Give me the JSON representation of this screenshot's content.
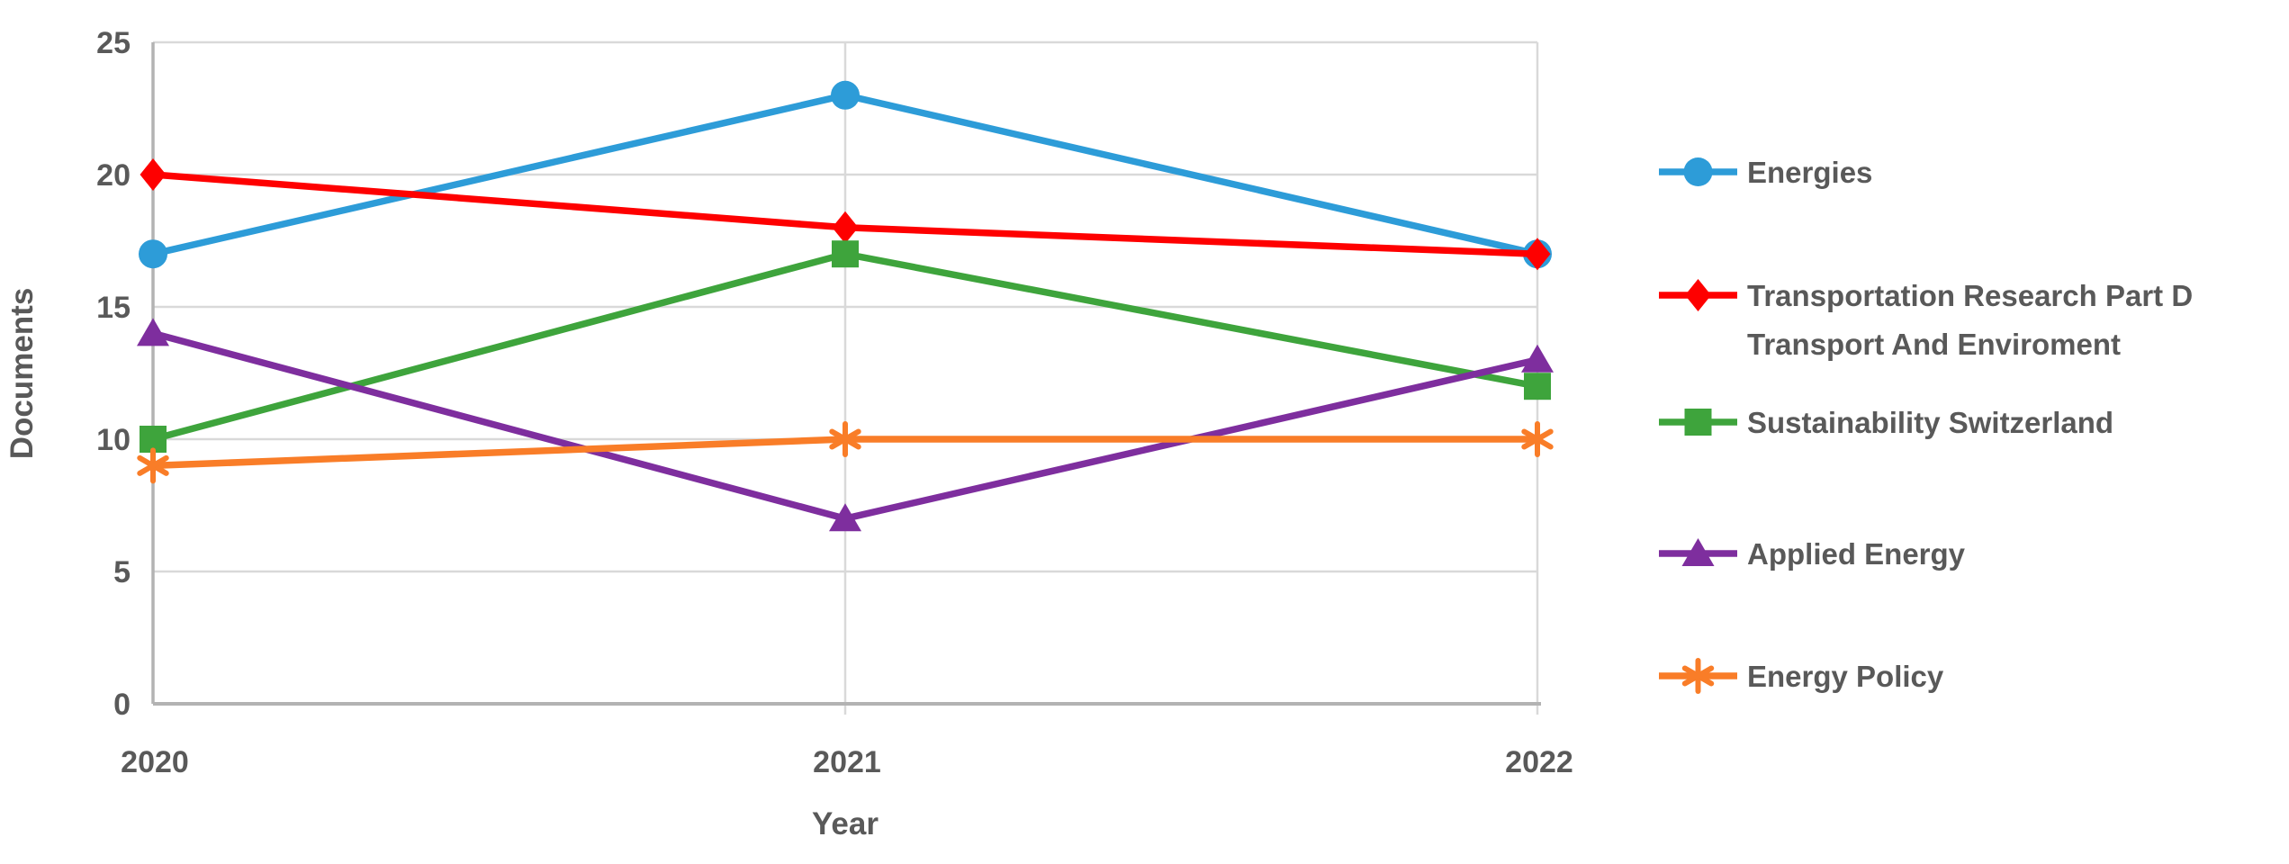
{
  "chart_data": {
    "type": "line",
    "title": "",
    "xlabel": "Year",
    "ylabel": "Documents",
    "categories": [
      "2020",
      "2021",
      "2022"
    ],
    "series": [
      {
        "name": "Energies",
        "values": [
          17,
          23,
          17
        ],
        "color": "#2D9CD8",
        "marker": "circle",
        "legend_lines": [
          "Energies"
        ]
      },
      {
        "name": "Transportation Research Part D Transport And Enviroment",
        "values": [
          20,
          18,
          17
        ],
        "color": "#FE0000",
        "marker": "diamond",
        "legend_lines": [
          "Transportation Research Part D",
          "Transport And Enviroment"
        ]
      },
      {
        "name": "Sustainability Switzerland",
        "values": [
          10,
          17,
          12
        ],
        "color": "#3EA43C",
        "marker": "square",
        "legend_lines": [
          "Sustainability Switzerland"
        ]
      },
      {
        "name": "Applied Energy",
        "values": [
          14,
          7,
          13
        ],
        "color": "#7E2E9E",
        "marker": "triangle",
        "legend_lines": [
          "Applied Energy"
        ]
      },
      {
        "name": "Energy Policy",
        "values": [
          9,
          10,
          10
        ],
        "color": "#F97D28",
        "marker": "asterisk",
        "legend_lines": [
          "Energy Policy"
        ]
      }
    ],
    "ylim": [
      0,
      25
    ],
    "yticks": [
      0,
      5,
      10,
      15,
      20,
      25
    ],
    "grid": true,
    "legend_position": "right"
  },
  "styles": {
    "text_color": "#595959",
    "gridline_color": "#D9D9D9",
    "axis_color": "#B3B3B3",
    "background": "#FFFFFF"
  }
}
